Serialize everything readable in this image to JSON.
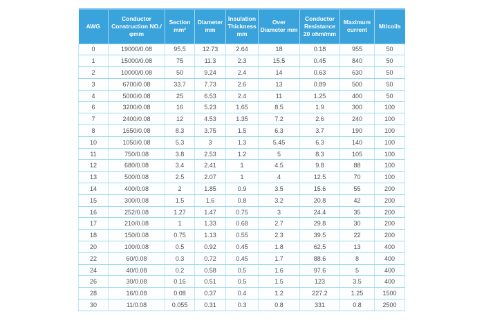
{
  "colors": {
    "header_bg": "#3aa3db",
    "header_text": "#ffffff",
    "row_text": "#4f4f4f",
    "grid_line": "#9fd8ee",
    "page_bg": "#ffffff"
  },
  "chart_data": {
    "type": "table",
    "title": "",
    "columns": [
      "AWG",
      "Conductor Construction NO./φmm",
      "Section mm²",
      "Diameter mm",
      "Insulation Thickness mm",
      "Over Diameter mm",
      "Conductor Resistance 20 ohm/mm",
      "Maximum current",
      "Mt/coils"
    ],
    "rows": [
      [
        "0",
        "19000/0.08",
        "95.5",
        "12.73",
        "2.64",
        "18",
        "0.18",
        "955",
        "50"
      ],
      [
        "1",
        "15000/0.08",
        "75",
        "11.3",
        "2.3",
        "15.5",
        "0.45",
        "840",
        "50"
      ],
      [
        "2",
        "10000/0.08",
        "50",
        "9.24",
        "2.4",
        "14",
        "0.63",
        "630",
        "50"
      ],
      [
        "3",
        "6700/0.08",
        "33.7",
        "7.73",
        "2.6",
        "13",
        "0.89",
        "500",
        "50"
      ],
      [
        "4",
        "5000/0.08",
        "25",
        "6.53",
        "2.4",
        "11",
        "1.25",
        "400",
        "50"
      ],
      [
        "6",
        "3200/0.08",
        "16",
        "5.23",
        "1.65",
        "8.5",
        "1.9",
        "300",
        "100"
      ],
      [
        "7",
        "2400/0.08",
        "12",
        "4.53",
        "1.35",
        "7.2",
        "2.6",
        "240",
        "100"
      ],
      [
        "8",
        "1650/0.08",
        "8.3",
        "3.75",
        "1.5",
        "6.3",
        "3.7",
        "190",
        "100"
      ],
      [
        "10",
        "1050/0.08",
        "5.3",
        "3",
        "1.3",
        "5.45",
        "6.3",
        "140",
        "100"
      ],
      [
        "11",
        "750/0.08",
        "3.8",
        "2.53",
        "1.2",
        "5",
        "8.3",
        "105",
        "100"
      ],
      [
        "12",
        "680/0.08",
        "3.4",
        "2.41",
        "1",
        "4.5",
        "9.8",
        "88",
        "100"
      ],
      [
        "13",
        "500/0.08",
        "2.5",
        "2.07",
        "1",
        "4",
        "12.5",
        "70",
        "100"
      ],
      [
        "14",
        "400/0.08",
        "2",
        "1.85",
        "0.9",
        "3.5",
        "15.6",
        "55",
        "200"
      ],
      [
        "15",
        "300/0.08",
        "1.5",
        "1.6",
        "0.8",
        "3.2",
        "20.8",
        "42",
        "200"
      ],
      [
        "16",
        "252/0.08",
        "1.27",
        "1.47",
        "0.75",
        "3",
        "24.4",
        "35",
        "200"
      ],
      [
        "17",
        "210/0.08",
        "1",
        "1.33",
        "0.68",
        "2.7",
        "29.8",
        "30",
        "200"
      ],
      [
        "18",
        "150/0.08",
        "0.75",
        "1.13",
        "0.55",
        "2.3",
        "39.5",
        "22",
        "200"
      ],
      [
        "20",
        "100/0.08",
        "0.5",
        "0.92",
        "0.45",
        "1.8",
        "62.5",
        "13",
        "400"
      ],
      [
        "22",
        "60/0.08",
        "0.3",
        "0.72",
        "0.45",
        "1.7",
        "88.6",
        "8",
        "400"
      ],
      [
        "24",
        "40/0.08",
        "0.2",
        "0.58",
        "0.5",
        "1.6",
        "97.6",
        "5",
        "400"
      ],
      [
        "26",
        "30/0.08",
        "0.16",
        "0.51",
        "0.5",
        "1.5",
        "123",
        "3.5",
        "400"
      ],
      [
        "28",
        "16/0.08",
        "0.08",
        "0.37",
        "0.4",
        "1.2",
        "227.2",
        "1.25",
        "1500"
      ],
      [
        "30",
        "11/0.08",
        "0.055",
        "0.31",
        "0.3",
        "0.8",
        "331",
        "0.8",
        "2500"
      ]
    ]
  }
}
